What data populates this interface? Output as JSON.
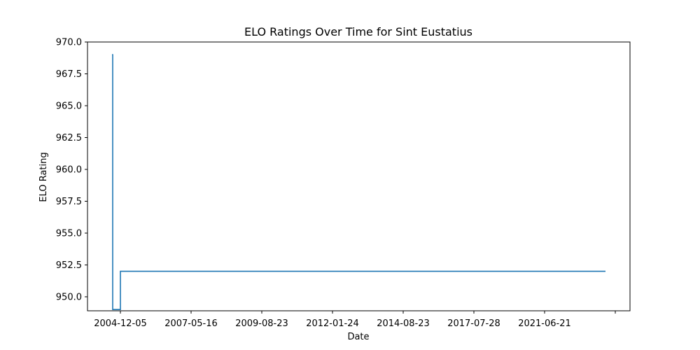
{
  "chart_data": {
    "type": "line",
    "title": "ELO Ratings Over Time for Sint Eustatius",
    "xlabel": "Date",
    "ylabel": "ELO Rating",
    "ylim": [
      948.9,
      970.0
    ],
    "y_ticks": [
      "950.0",
      "952.5",
      "955.0",
      "957.5",
      "960.0",
      "962.5",
      "965.0",
      "967.5",
      "970.0"
    ],
    "x_ticks": [
      "2004-12-05",
      "2007-05-16",
      "2009-08-23",
      "2012-01-24",
      "2014-08-23",
      "2017-07-28",
      "2021-06-21",
      ""
    ],
    "grid": false,
    "series": [
      {
        "color": "#1f77b4",
        "x": [
          "2004-12-05",
          "2004-12-05",
          "2004-12-05",
          "2004-12-05",
          "2004-12-05",
          "2007-05-16",
          "2009-08-23",
          "2012-01-24",
          "2014-08-23",
          "2017-07-28",
          "2021-06-21",
          "2021-06-21"
        ],
        "y": [
          969.0,
          969.0,
          949.0,
          949.0,
          952.0,
          952.0,
          952.0,
          952.0,
          952.0,
          952.0,
          952.0,
          952.0
        ]
      }
    ]
  }
}
